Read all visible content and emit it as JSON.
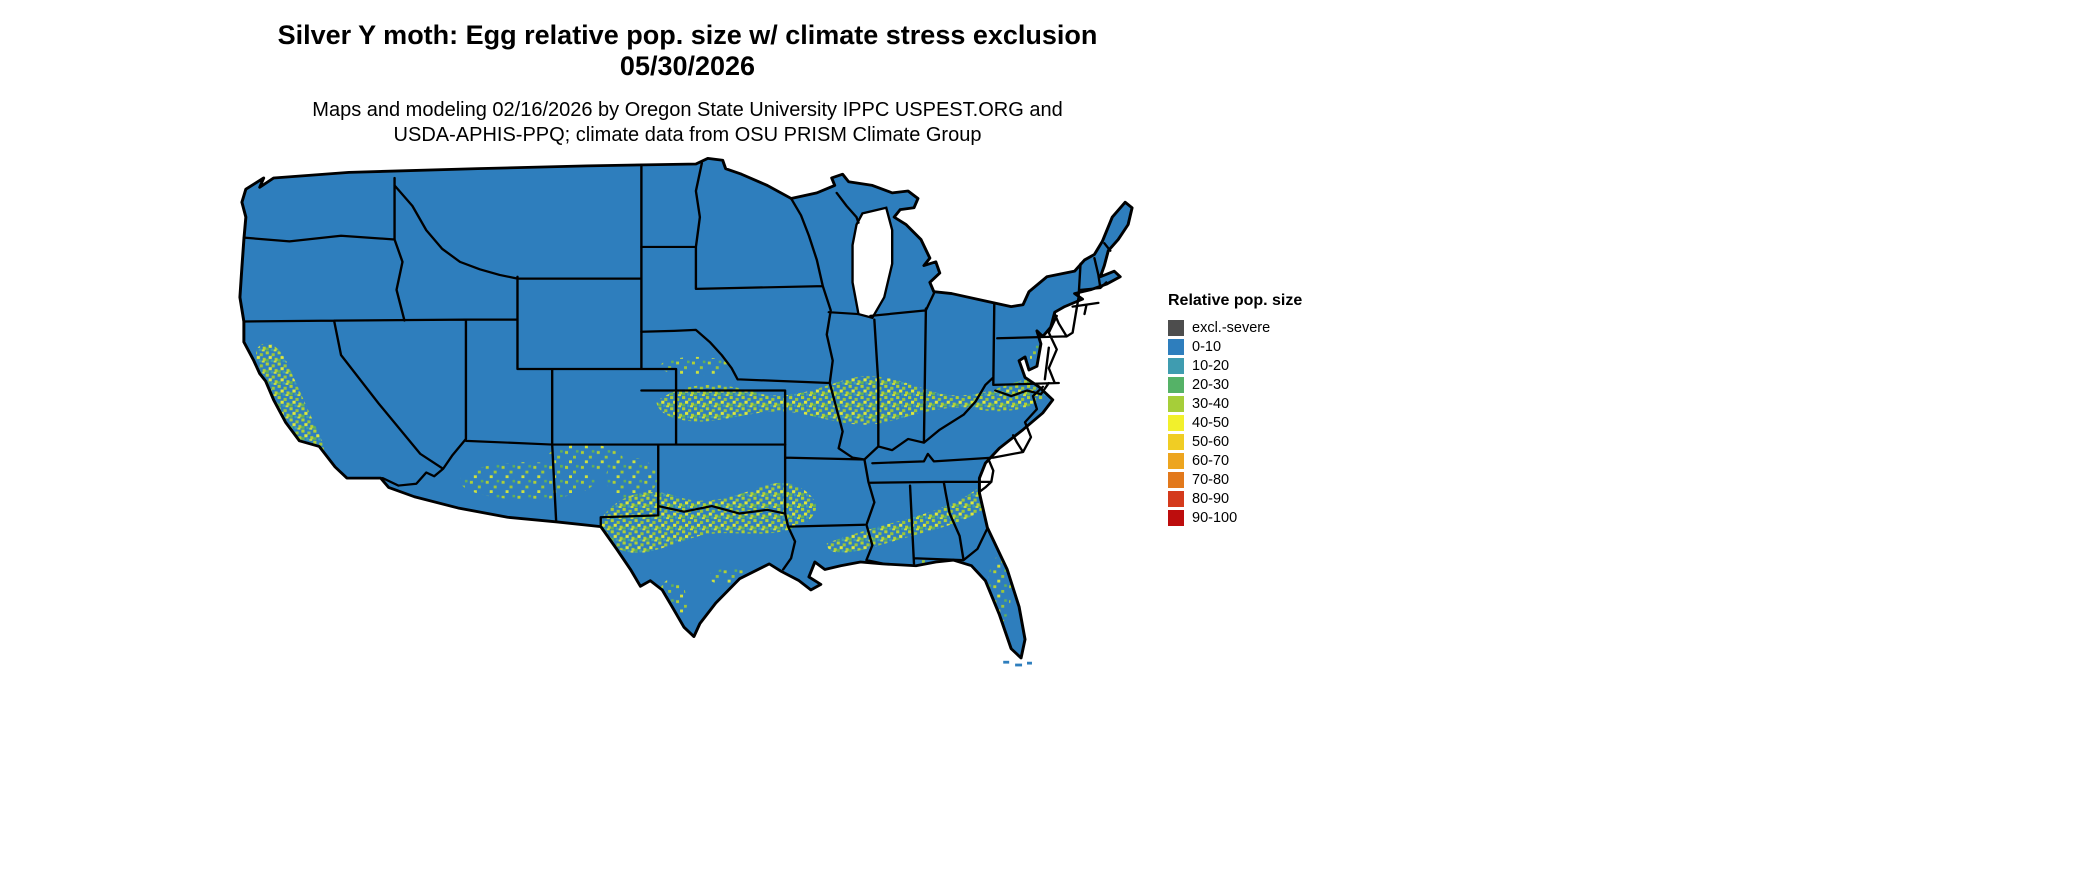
{
  "title": {
    "line1": "Silver Y moth: Egg relative pop. size w/ climate stress exclusion",
    "line2": "05/30/2026"
  },
  "subtitle": {
    "line1": "Maps and modeling 02/16/2026 by Oregon State University IPPC USPEST.ORG and",
    "line2": "USDA-APHIS-PPQ; climate data from OSU PRISM Climate Group"
  },
  "legend": {
    "title": "Relative pop. size",
    "items": [
      {
        "label": "excl.-severe",
        "color": "#4d4d4d"
      },
      {
        "label": "0-10",
        "color": "#2e7ebd"
      },
      {
        "label": "10-20",
        "color": "#3f9cb0"
      },
      {
        "label": "20-30",
        "color": "#55b267"
      },
      {
        "label": "30-40",
        "color": "#a6ce39"
      },
      {
        "label": "40-50",
        "color": "#f2f02c"
      },
      {
        "label": "50-60",
        "color": "#f0cd24"
      },
      {
        "label": "60-70",
        "color": "#eda51f"
      },
      {
        "label": "70-80",
        "color": "#e2791c"
      },
      {
        "label": "80-90",
        "color": "#d43a1c"
      },
      {
        "label": "90-100",
        "color": "#bd0d0d"
      }
    ]
  },
  "map": {
    "base_color": "#2e7ebd",
    "description": "Continental United States choropleth raster"
  }
}
